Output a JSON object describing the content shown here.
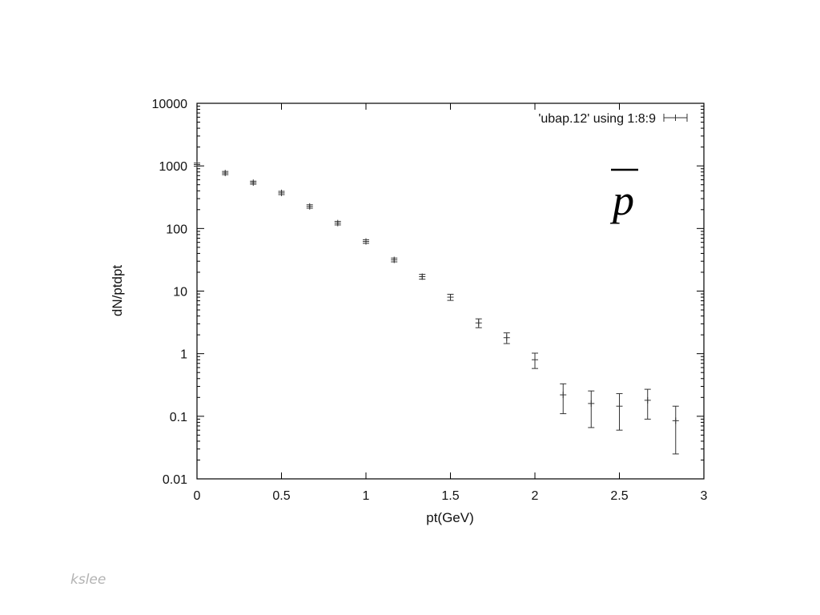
{
  "chart_data": {
    "type": "scatter",
    "title": "",
    "xlabel": "pt(GeV)",
    "ylabel": "dN/ptdpt",
    "xlim": [
      0,
      3
    ],
    "ylim": [
      0.01,
      10000
    ],
    "y_scale": "log",
    "grid": false,
    "legend_position": "top-right",
    "x_ticks": [
      "0",
      "0.5",
      "1",
      "1.5",
      "2",
      "2.5",
      "3"
    ],
    "y_ticks": [
      "10000",
      "1000",
      "100",
      "10",
      "1",
      "0.1",
      "0.01"
    ],
    "annotation": "p",
    "series": [
      {
        "name": "'ubap.12' using 1:8:9",
        "points": [
          {
            "x": 0.0,
            "y": 1050,
            "err": 60
          },
          {
            "x": 0.167,
            "y": 770,
            "err": 45
          },
          {
            "x": 0.333,
            "y": 540,
            "err": 30
          },
          {
            "x": 0.5,
            "y": 370,
            "err": 22
          },
          {
            "x": 0.667,
            "y": 225,
            "err": 14
          },
          {
            "x": 0.833,
            "y": 122,
            "err": 8
          },
          {
            "x": 1.0,
            "y": 62,
            "err": 4
          },
          {
            "x": 1.167,
            "y": 31.5,
            "err": 2.2
          },
          {
            "x": 1.333,
            "y": 17,
            "err": 1.5
          },
          {
            "x": 1.5,
            "y": 8,
            "err": 0.9
          },
          {
            "x": 1.667,
            "y": 3.1,
            "err": 0.5
          },
          {
            "x": 1.833,
            "y": 1.8,
            "err": 0.35
          },
          {
            "x": 2.0,
            "y": 0.8,
            "err": 0.22
          },
          {
            "x": 2.167,
            "y": 0.22,
            "err": 0.11
          },
          {
            "x": 2.333,
            "y": 0.16,
            "err": 0.094
          },
          {
            "x": 2.5,
            "y": 0.145,
            "err": 0.085
          },
          {
            "x": 2.667,
            "y": 0.18,
            "err": 0.09
          },
          {
            "x": 2.833,
            "y": 0.085,
            "err": 0.06
          }
        ]
      }
    ]
  },
  "footer_text": "kslee",
  "colors": {
    "axis": "#000000",
    "series": "#333333",
    "footer": "#b3b3b3"
  }
}
